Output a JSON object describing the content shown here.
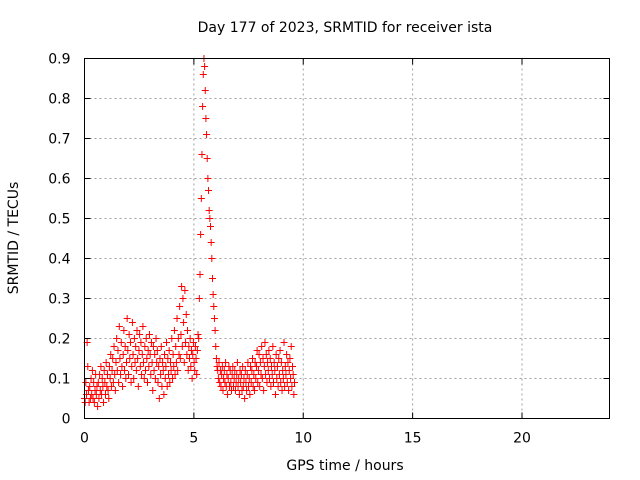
{
  "chart_data": {
    "type": "scatter",
    "title": "Day 177 of 2023, SRMTID for receiver ista",
    "xlabel": "GPS time / hours",
    "ylabel": "SRMTID / TECUs",
    "xlim": [
      0,
      24
    ],
    "ylim": [
      0,
      0.9
    ],
    "xticks": [
      0,
      5,
      10,
      15,
      20
    ],
    "xtick_labels": [
      "0",
      "5",
      "10",
      "15",
      "20"
    ],
    "yticks": [
      0,
      0.1,
      0.2,
      0.3,
      0.4,
      0.5,
      0.6,
      0.7,
      0.8,
      0.9
    ],
    "ytick_labels": [
      "0",
      "0.1",
      "0.2",
      "0.3",
      "0.4",
      "0.5",
      "0.6",
      "0.7",
      "0.8",
      "0.9"
    ],
    "grid": true,
    "marker_color": "#ff0000",
    "series": [
      {
        "name": "SRMTID",
        "x": [
          0.0,
          0.03,
          0.06,
          0.09,
          0.12,
          0.15,
          0.18,
          0.21,
          0.24,
          0.27,
          0.3,
          0.33,
          0.36,
          0.39,
          0.42,
          0.45,
          0.48,
          0.51,
          0.54,
          0.57,
          0.6,
          0.63,
          0.66,
          0.69,
          0.72,
          0.75,
          0.78,
          0.81,
          0.84,
          0.87,
          0.9,
          0.93,
          0.96,
          0.99,
          1.02,
          1.05,
          1.08,
          1.11,
          1.14,
          1.17,
          1.2,
          1.23,
          1.26,
          1.29,
          1.32,
          1.35,
          1.38,
          1.41,
          1.44,
          1.47,
          1.5,
          1.53,
          1.56,
          1.59,
          1.62,
          1.65,
          1.68,
          1.71,
          1.74,
          1.77,
          1.8,
          1.83,
          1.86,
          1.89,
          1.92,
          1.95,
          1.98,
          2.01,
          2.04,
          2.07,
          2.1,
          2.13,
          2.16,
          2.19,
          2.22,
          2.25,
          2.28,
          2.31,
          2.34,
          2.37,
          2.4,
          2.43,
          2.46,
          2.49,
          2.52,
          2.55,
          2.58,
          2.61,
          2.64,
          2.67,
          2.7,
          2.73,
          2.76,
          2.79,
          2.82,
          2.85,
          2.88,
          2.91,
          2.94,
          2.97,
          3.0,
          3.03,
          3.06,
          3.09,
          3.12,
          3.15,
          3.18,
          3.21,
          3.24,
          3.27,
          3.3,
          3.33,
          3.36,
          3.39,
          3.42,
          3.45,
          3.48,
          3.51,
          3.54,
          3.57,
          3.6,
          3.63,
          3.66,
          3.69,
          3.72,
          3.75,
          3.78,
          3.81,
          3.84,
          3.87,
          3.9,
          3.93,
          3.96,
          3.99,
          4.02,
          4.05,
          4.08,
          4.11,
          4.14,
          4.17,
          4.2,
          4.23,
          4.26,
          4.29,
          4.32,
          4.35,
          4.38,
          4.41,
          4.44,
          4.47,
          4.5,
          4.53,
          4.56,
          4.59,
          4.62,
          4.65,
          4.68,
          4.71,
          4.74,
          4.77,
          4.8,
          4.83,
          4.86,
          4.89,
          4.92,
          4.95,
          4.98,
          5.01,
          5.04,
          5.07,
          5.1,
          5.13,
          5.16,
          5.19,
          5.22,
          5.25,
          5.28,
          5.31,
          5.34,
          5.37,
          5.4,
          5.43,
          5.46,
          5.49,
          5.52,
          5.55,
          5.58,
          5.61,
          5.64,
          5.67,
          5.7,
          5.73,
          5.76,
          5.79,
          5.82,
          5.85,
          5.88,
          5.91,
          5.94,
          5.97,
          6.0,
          6.03,
          6.06,
          6.09,
          6.12,
          6.15,
          6.18,
          6.21,
          6.24,
          6.27,
          6.3,
          6.33,
          6.36,
          6.39,
          6.42,
          6.45,
          6.48,
          6.51,
          6.54,
          6.57,
          6.6,
          6.63,
          6.66,
          6.69,
          6.72,
          6.75,
          6.78,
          6.81,
          6.84,
          6.87,
          6.9,
          6.93,
          6.96,
          6.99,
          7.02,
          7.05,
          7.08,
          7.11,
          7.14,
          7.17,
          7.2,
          7.23,
          7.26,
          7.29,
          7.32,
          7.35,
          7.38,
          7.41,
          7.44,
          7.47,
          7.5,
          7.53,
          7.56,
          7.59,
          7.62,
          7.65,
          7.68,
          7.71,
          7.74,
          7.77,
          7.8,
          7.83,
          7.86,
          7.89,
          7.92,
          7.95,
          7.98,
          8.01,
          8.04,
          8.07,
          8.1,
          8.13,
          8.16,
          8.19,
          8.22,
          8.25,
          8.28,
          8.31,
          8.34,
          8.37,
          8.4,
          8.43,
          8.46,
          8.49,
          8.52,
          8.55,
          8.58,
          8.61,
          8.64,
          8.67,
          8.7,
          8.73,
          8.76,
          8.79,
          8.82,
          8.85,
          8.88,
          8.91,
          8.94,
          8.97,
          9.0,
          9.03,
          9.06,
          9.09,
          9.12,
          9.15,
          9.18,
          9.21,
          9.24,
          9.27,
          9.3,
          9.33,
          9.36,
          9.39,
          9.42,
          9.45,
          9.48,
          9.51,
          9.54,
          9.57,
          9.6
        ],
        "y": [
          0.05,
          0.04,
          0.09,
          0.06,
          0.19,
          0.13,
          0.07,
          0.04,
          0.08,
          0.05,
          0.1,
          0.06,
          0.12,
          0.05,
          0.09,
          0.04,
          0.07,
          0.11,
          0.06,
          0.08,
          0.03,
          0.09,
          0.05,
          0.11,
          0.07,
          0.13,
          0.06,
          0.1,
          0.08,
          0.04,
          0.12,
          0.09,
          0.06,
          0.14,
          0.08,
          0.11,
          0.07,
          0.05,
          0.13,
          0.1,
          0.16,
          0.08,
          0.12,
          0.15,
          0.09,
          0.18,
          0.11,
          0.07,
          0.14,
          0.2,
          0.12,
          0.17,
          0.09,
          0.23,
          0.15,
          0.11,
          0.19,
          0.13,
          0.08,
          0.16,
          0.22,
          0.12,
          0.18,
          0.1,
          0.14,
          0.25,
          0.17,
          0.11,
          0.21,
          0.15,
          0.19,
          0.09,
          0.13,
          0.24,
          0.16,
          0.1,
          0.2,
          0.14,
          0.18,
          0.12,
          0.22,
          0.15,
          0.08,
          0.17,
          0.21,
          0.13,
          0.19,
          0.11,
          0.16,
          0.23,
          0.14,
          0.1,
          0.18,
          0.12,
          0.2,
          0.15,
          0.09,
          0.17,
          0.13,
          0.21,
          0.16,
          0.11,
          0.19,
          0.14,
          0.07,
          0.18,
          0.12,
          0.16,
          0.1,
          0.2,
          0.14,
          0.17,
          0.09,
          0.13,
          0.05,
          0.15,
          0.11,
          0.18,
          0.08,
          0.14,
          0.12,
          0.06,
          0.16,
          0.1,
          0.13,
          0.19,
          0.08,
          0.15,
          0.11,
          0.17,
          0.09,
          0.14,
          0.12,
          0.2,
          0.1,
          0.16,
          0.13,
          0.22,
          0.11,
          0.18,
          0.14,
          0.25,
          0.12,
          0.2,
          0.16,
          0.28,
          0.15,
          0.21,
          0.33,
          0.18,
          0.3,
          0.24,
          0.14,
          0.32,
          0.19,
          0.26,
          0.16,
          0.22,
          0.12,
          0.18,
          0.15,
          0.2,
          0.13,
          0.17,
          0.1,
          0.16,
          0.19,
          0.14,
          0.12,
          0.18,
          0.15,
          0.11,
          0.17,
          0.21,
          0.2,
          0.3,
          0.36,
          0.46,
          0.55,
          0.66,
          0.78,
          0.86,
          0.9,
          0.88,
          0.82,
          0.75,
          0.71,
          0.65,
          0.6,
          0.57,
          0.52,
          0.5,
          0.48,
          0.44,
          0.4,
          0.35,
          0.31,
          0.28,
          0.25,
          0.22,
          0.18,
          0.15,
          0.13,
          0.12,
          0.1,
          0.14,
          0.09,
          0.12,
          0.08,
          0.11,
          0.13,
          0.07,
          0.1,
          0.12,
          0.09,
          0.14,
          0.08,
          0.11,
          0.06,
          0.1,
          0.13,
          0.08,
          0.12,
          0.09,
          0.07,
          0.11,
          0.13,
          0.08,
          0.1,
          0.12,
          0.07,
          0.09,
          0.11,
          0.14,
          0.08,
          0.1,
          0.06,
          0.12,
          0.09,
          0.11,
          0.07,
          0.13,
          0.08,
          0.1,
          0.05,
          0.12,
          0.09,
          0.07,
          0.11,
          0.14,
          0.08,
          0.1,
          0.06,
          0.13,
          0.09,
          0.12,
          0.15,
          0.08,
          0.11,
          0.07,
          0.14,
          0.1,
          0.13,
          0.17,
          0.09,
          0.12,
          0.16,
          0.08,
          0.14,
          0.11,
          0.18,
          0.1,
          0.15,
          0.07,
          0.13,
          0.19,
          0.11,
          0.16,
          0.09,
          0.14,
          0.12,
          0.17,
          0.1,
          0.15,
          0.08,
          0.13,
          0.11,
          0.18,
          0.09,
          0.14,
          0.12,
          0.06,
          0.16,
          0.1,
          0.13,
          0.08,
          0.15,
          0.11,
          0.17,
          0.09,
          0.14,
          0.07,
          0.12,
          0.1,
          0.19,
          0.08,
          0.13,
          0.11,
          0.16,
          0.09,
          0.14,
          0.07,
          0.12,
          0.15,
          0.1,
          0.18,
          0.08,
          0.13,
          0.11,
          0.06,
          0.09
        ]
      }
    ]
  }
}
